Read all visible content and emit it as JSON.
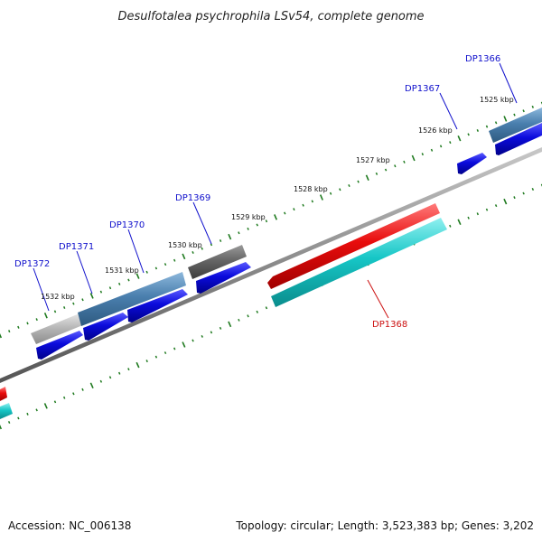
{
  "header": {
    "title": "Desulfotalea psychrophila LSv54, complete genome"
  },
  "footer": {
    "accession": "Accession: NC_006138",
    "topology": "Topology: circular; Length: 3,523,383 bp; Genes: 3,202"
  },
  "colors": {
    "backbone": "#8a8a8a",
    "tick": "#1f7a1f",
    "label_blue": "#1010cc",
    "label_red": "#cc1010",
    "cds_blue": "#0b0bdc",
    "red": "#e80c0c",
    "cyan": "#16c6c6",
    "steelblue": "#4a7fae",
    "gray": "#666666",
    "lightgray": "#b8b8b8"
  },
  "kbp_labels": [
    "1525 kbp",
    "1526 kbp",
    "1527 kbp",
    "1528 kbp",
    "1529 kbp",
    "1530 kbp",
    "1531 kbp",
    "1532 kbp"
  ],
  "gene_labels": [
    "DP1366",
    "DP1367",
    "DP1368",
    "DP1369",
    "DP1370",
    "DP1371",
    "DP1372"
  ]
}
